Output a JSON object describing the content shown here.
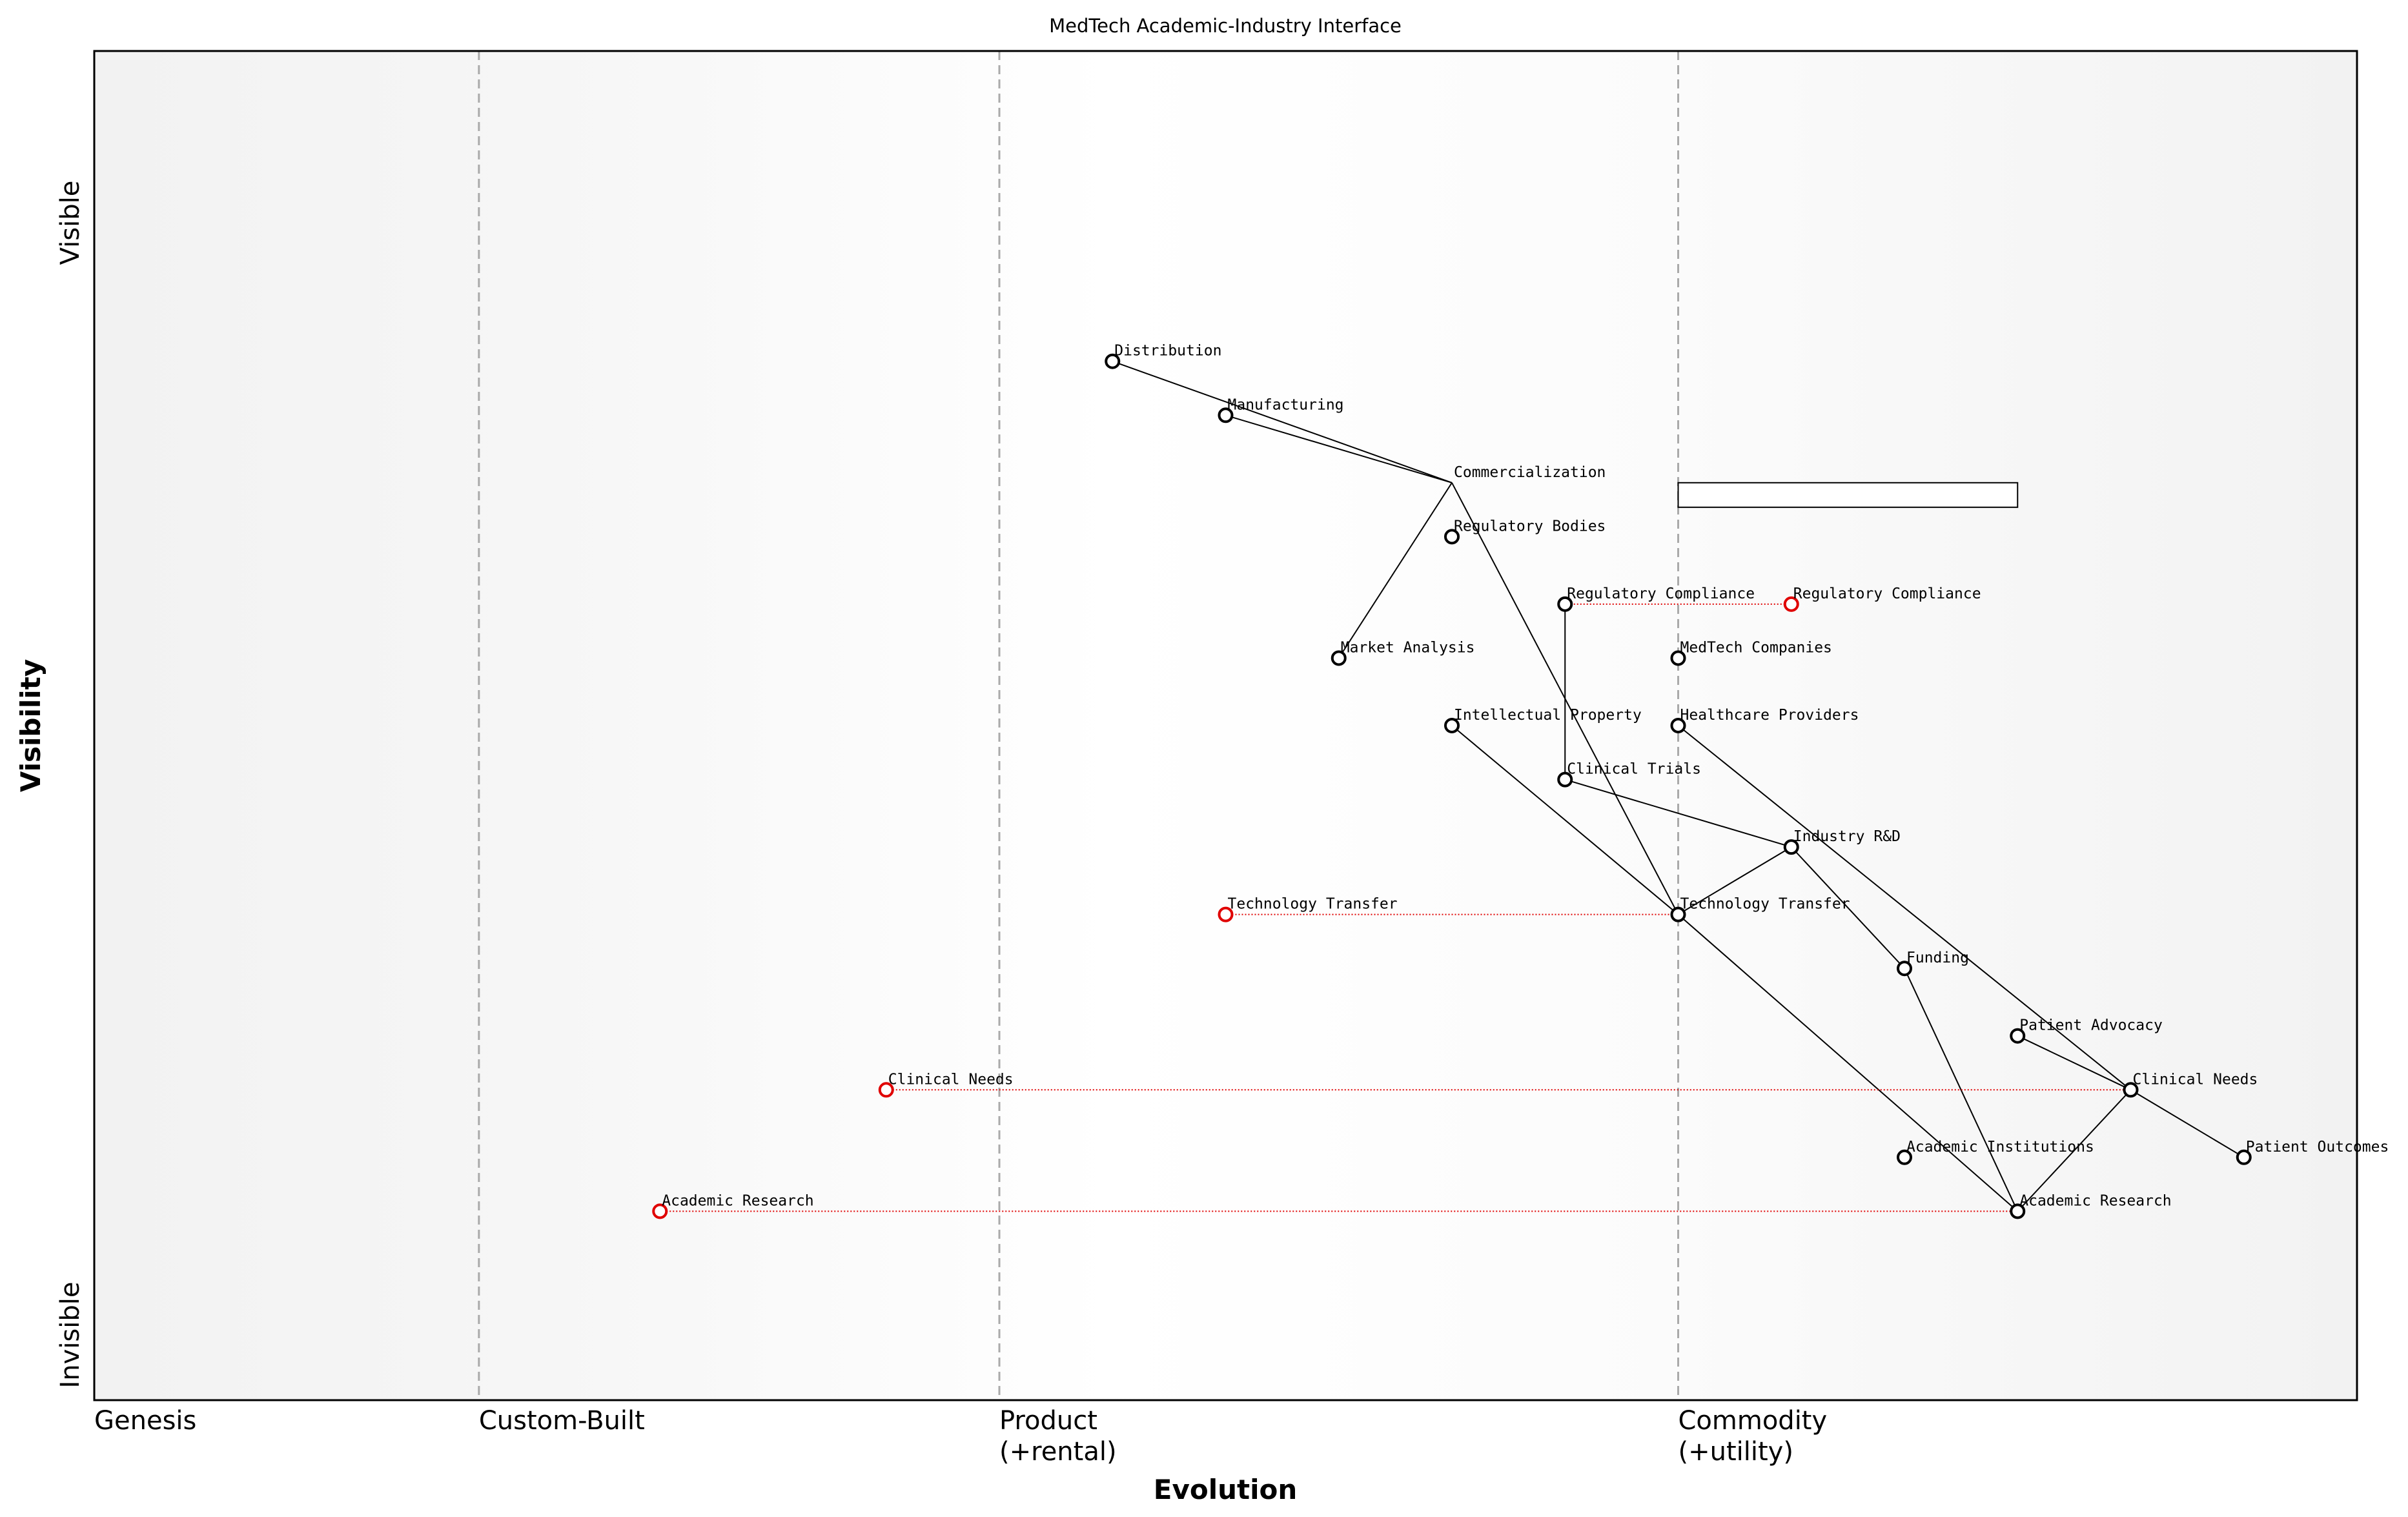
{
  "chart_data": {
    "type": "wardley",
    "title": "MedTech Academic-Industry Interface",
    "xlabel": "Evolution",
    "ylabel": "Visibility",
    "ylabel_top": "Visible",
    "ylabel_bottom": "Invisible",
    "xlim": [
      0,
      1
    ],
    "ylim": [
      0,
      1
    ],
    "xticks": [
      {
        "value": 0,
        "label": "Genesis"
      },
      {
        "value": 0.17,
        "label": "Custom-Built"
      },
      {
        "value": 0.4,
        "label": "Product\n(+rental)"
      },
      {
        "value": 0.7,
        "label": "Commodity\n(+utility)"
      }
    ],
    "grid": true,
    "nodes": [
      {
        "name": "Distribution",
        "x": 0.45,
        "y": 0.77,
        "color": "#000000"
      },
      {
        "name": "Manufacturing",
        "x": 0.5,
        "y": 0.73,
        "color": "#000000"
      },
      {
        "name": "Commercialization",
        "x": 0.6,
        "y": 0.68,
        "color": "#000000",
        "marker": false
      },
      {
        "name": "Regulatory Bodies",
        "x": 0.6,
        "y": 0.64,
        "color": "#000000"
      },
      {
        "name": "Regulatory Compliance",
        "x": 0.65,
        "y": 0.59,
        "color": "#000000"
      },
      {
        "name": "Regulatory Compliance",
        "x": 0.75,
        "y": 0.59,
        "color": "#e00000"
      },
      {
        "name": "Market Analysis",
        "x": 0.55,
        "y": 0.55,
        "color": "#000000"
      },
      {
        "name": "MedTech Companies",
        "x": 0.7,
        "y": 0.55,
        "color": "#000000"
      },
      {
        "name": "Intellectual Property",
        "x": 0.6,
        "y": 0.5,
        "color": "#000000"
      },
      {
        "name": "Healthcare Providers",
        "x": 0.7,
        "y": 0.5,
        "color": "#000000"
      },
      {
        "name": "Clinical Trials",
        "x": 0.65,
        "y": 0.46,
        "color": "#000000"
      },
      {
        "name": "Industry R&D",
        "x": 0.75,
        "y": 0.41,
        "color": "#000000"
      },
      {
        "name": "Technology Transfer",
        "x": 0.5,
        "y": 0.36,
        "color": "#e00000"
      },
      {
        "name": "Technology Transfer",
        "x": 0.7,
        "y": 0.36,
        "color": "#000000"
      },
      {
        "name": "Funding",
        "x": 0.8,
        "y": 0.32,
        "color": "#000000"
      },
      {
        "name": "Patient Advocacy",
        "x": 0.85,
        "y": 0.27,
        "color": "#000000"
      },
      {
        "name": "Clinical Needs",
        "x": 0.35,
        "y": 0.23,
        "color": "#e00000"
      },
      {
        "name": "Clinical Needs",
        "x": 0.9,
        "y": 0.23,
        "color": "#000000"
      },
      {
        "name": "Academic Institutions",
        "x": 0.8,
        "y": 0.18,
        "color": "#000000"
      },
      {
        "name": "Patient Outcomes",
        "x": 0.95,
        "y": 0.18,
        "color": "#000000"
      },
      {
        "name": "Academic Research",
        "x": 0.25,
        "y": 0.14,
        "color": "#e00000"
      },
      {
        "name": "Academic Research",
        "x": 0.85,
        "y": 0.14,
        "color": "#000000"
      }
    ],
    "links": [
      [
        0,
        2
      ],
      [
        1,
        2
      ],
      [
        2,
        6
      ],
      [
        2,
        13
      ],
      [
        4,
        10
      ],
      [
        10,
        11
      ],
      [
        8,
        13
      ],
      [
        13,
        11
      ],
      [
        13,
        21
      ],
      [
        11,
        14
      ],
      [
        14,
        21
      ],
      [
        9,
        17
      ],
      [
        15,
        17
      ],
      [
        17,
        19
      ],
      [
        17,
        21
      ]
    ],
    "movements": [
      [
        5,
        4
      ],
      [
        12,
        13
      ],
      [
        16,
        17
      ],
      [
        20,
        21
      ]
    ],
    "pipelines": [
      {
        "node": 2,
        "x": [
          0.7,
          0.85
        ]
      }
    ]
  }
}
